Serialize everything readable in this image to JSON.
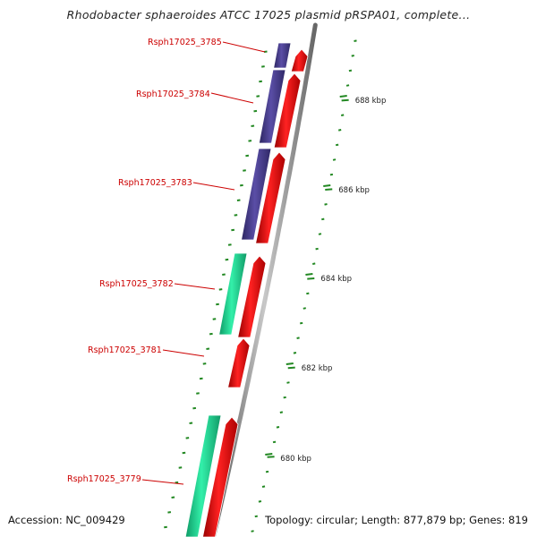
{
  "title": "Rhodobacter sphaeroides ATCC 17025 plasmid pRSPA01, complete...",
  "footer": {
    "accession": "Accession: NC_009429",
    "summary": "Topology: circular; Length: 877,879 bp; Genes: 819"
  },
  "colors": {
    "background": "#ffffff",
    "backbone": "#8c8c8c",
    "cds": "#ee1111",
    "cog_purple": "#4b3f8f",
    "cog_teal": "#22dd99",
    "gene_label": "#cc0000",
    "tick": "#228822"
  },
  "genes": [
    {
      "id": "Rsph17025_3785"
    },
    {
      "id": "Rsph17025_3784"
    },
    {
      "id": "Rsph17025_3783"
    },
    {
      "id": "Rsph17025_3782"
    },
    {
      "id": "Rsph17025_3781"
    },
    {
      "id": "Rsph17025_3779"
    }
  ],
  "scale": {
    "unit": "kbp",
    "labels": [
      "688 kbp",
      "686 kbp",
      "684 kbp",
      "682 kbp",
      "680 kbp"
    ]
  }
}
